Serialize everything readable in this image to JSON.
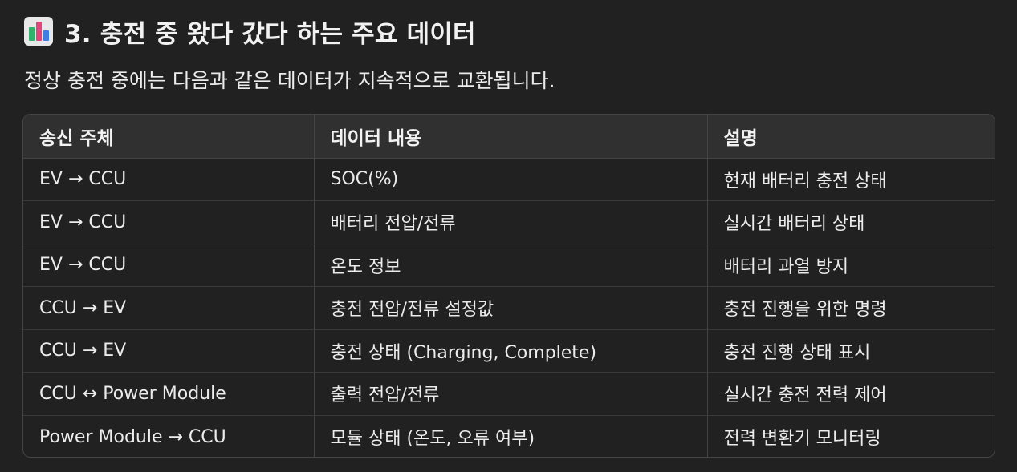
{
  "heading": {
    "icon": "bar-chart-icon",
    "text": "3. 충전 중 왔다 갔다 하는 주요 데이터"
  },
  "intro": "정상 충전 중에는 다음과 같은 데이터가 지속적으로 교환됩니다.",
  "table": {
    "headers": [
      "송신 주체",
      "데이터 내용",
      "설명"
    ],
    "rows": [
      [
        "EV → CCU",
        "SOC(%)",
        "현재 배터리 충전 상태"
      ],
      [
        "EV → CCU",
        "배터리 전압/전류",
        "실시간 배터리 상태"
      ],
      [
        "EV → CCU",
        "온도 정보",
        "배터리 과열 방지"
      ],
      [
        "CCU → EV",
        "충전 전압/전류 설정값",
        "충전 진행을 위한 명령"
      ],
      [
        "CCU → EV",
        "충전 상태 (Charging, Complete)",
        "충전 진행 상태 표시"
      ],
      [
        "CCU ↔ Power Module",
        "출력 전압/전류",
        "실시간 충전 전력 제어"
      ],
      [
        "Power Module → CCU",
        "모듈 상태 (온도, 오류 여부)",
        "전력 변환기 모니터링"
      ]
    ]
  },
  "colors": {
    "background": "#212121",
    "header_row": "#303030",
    "border": "#444444",
    "text": "#ececec"
  }
}
